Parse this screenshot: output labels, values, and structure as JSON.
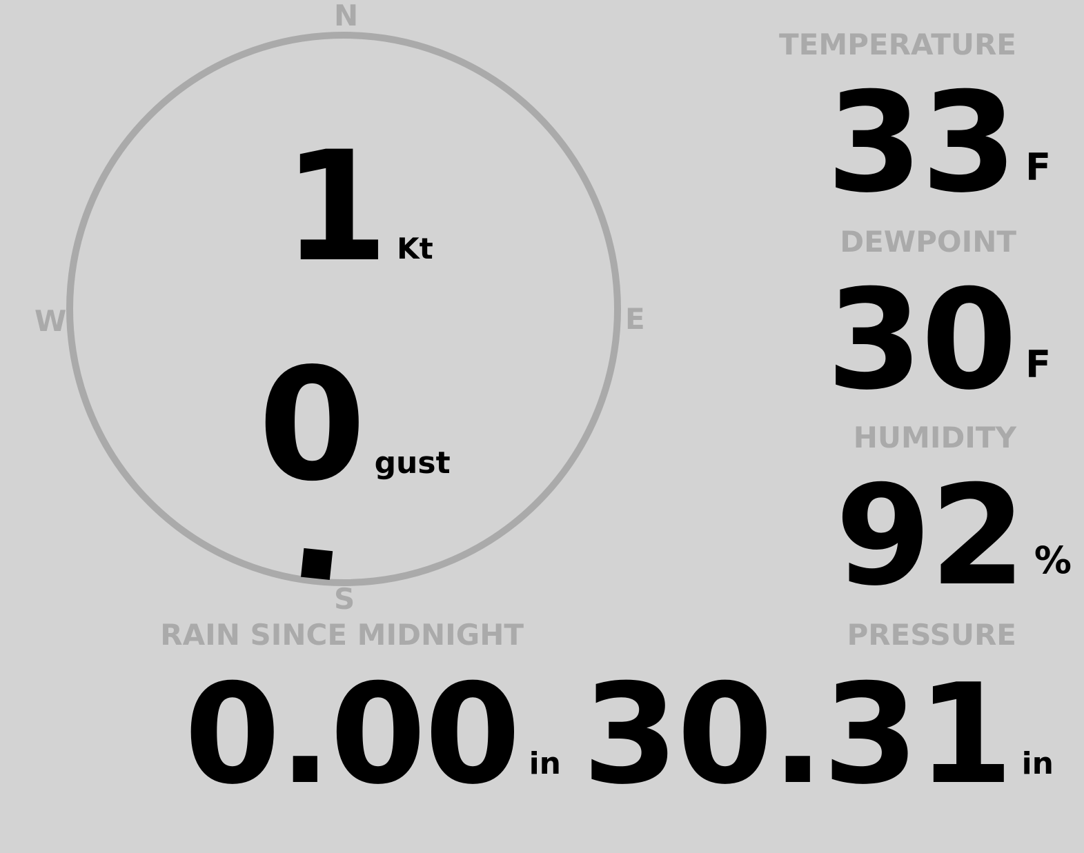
{
  "wind": {
    "speed": "1",
    "speed_unit": "Kt",
    "gust": "0",
    "gust_unit": "gust",
    "direction_deg": 186,
    "cardinals": {
      "n": "N",
      "e": "E",
      "s": "S",
      "w": "W"
    }
  },
  "temperature": {
    "label": "TEMPERATURE",
    "value": "33",
    "unit": "F"
  },
  "dewpoint": {
    "label": "DEWPOINT",
    "value": "30",
    "unit": "F"
  },
  "humidity": {
    "label": "HUMIDITY",
    "value": "92",
    "unit": "%"
  },
  "rain": {
    "label": "RAIN SINCE MIDNIGHT",
    "value": "0.00",
    "unit": "in"
  },
  "pressure": {
    "label": "PRESSURE",
    "value": "30.31",
    "unit": "in"
  },
  "colors": {
    "background": "#d3d3d3",
    "label": "#aaaaaa",
    "value": "#000000",
    "dial": "#aaaaaa"
  }
}
